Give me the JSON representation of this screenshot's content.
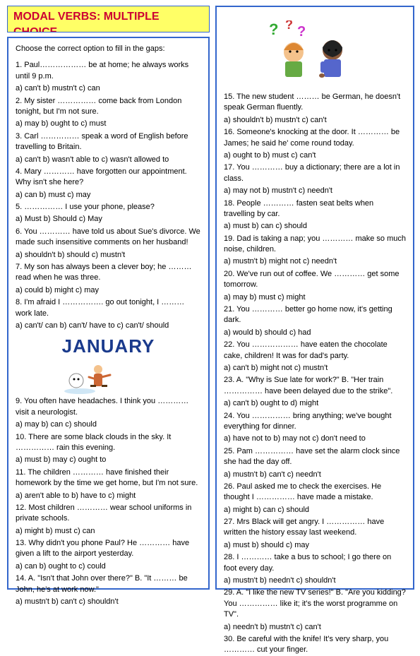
{
  "title": "MODAL VERBS: MULTIPLE CHOICE",
  "intro": "Choose the correct option to fill in the gaps:",
  "january_label": "JANUARY",
  "leftQuestions": [
    {
      "q": "1. Paul……………… be at home; he always works until 9 p.m.",
      "opts": "a) can't        b) mustn't             c) can"
    },
    {
      "q": "2. My sister …………… come back from London tonight, but I'm not sure.",
      "opts": "a) may        b) ought to             c) must"
    },
    {
      "q": "3. Carl …………… speak a word of English before travelling to Britain.",
      "opts": "a) can't   b) wasn't able to   c) wasn't allowed to"
    },
    {
      "q": "4. Mary ………… have forgotten our appointment. Why isn't she here?",
      "opts": "a) can        b) must                c) may"
    },
    {
      "q": "5. …………… I use your phone, please?",
      "opts": "a) Must       b) Should            c) May"
    },
    {
      "q": "6. You ………… have told us about Sue's divorce. We made such insensitive comments on her husband!",
      "opts": "a) shouldn't      b) should          c) mustn't"
    },
    {
      "q": "7. My son has always been a clever boy; he ……… read when he was three.",
      "opts": "a) could         b) might           c) may"
    },
    {
      "q": "8. I'm afraid I ……………. go out tonight, I ……… work late.",
      "opts": "a) can't/ can      b) can't/ have to    c) can't/ should"
    }
  ],
  "leftQuestions2": [
    {
      "q": "9. You often have headaches. I think you ………… visit a neurologist.",
      "opts": "a) may           b) can           c) should"
    },
    {
      "q": "10. There are some black clouds in the sky. It …………… rain this evening.",
      "opts": "a) must         b) may           c) ought to"
    },
    {
      "q": "11. The children ………… have finished their homework by the time we get home, but I'm not sure.",
      "opts": "a) aren't able to      b) have to    c) might"
    },
    {
      "q": "12. Most children ………… wear school uniforms in private schools.",
      "opts": "a) might        b) must           c) can"
    },
    {
      "q": "13. Why didn't you phone Paul? He ………… have given a lift to the airport yesterday.",
      "opts": "a) can           b) ought to       c) could"
    },
    {
      "q": "14. A. \"Isn't that John over there?\" B. \"It ……… be John, he's at work now.\"",
      "opts": "a) mustn't        b) can't         c) shouldn't"
    }
  ],
  "rightQuestions": [
    {
      "q": "15. The new student ……… be German, he doesn't speak German fluently.",
      "opts": "a) shouldn't      b) mustn't           c) can't"
    },
    {
      "q": "16. Someone's knocking at the door. It ………… be James; he said he' come round today.",
      "opts": "a) ought to         b) must                c) can't"
    },
    {
      "q": "17. You ………… buy a dictionary; there are a lot in class.",
      "opts": "a) may not         b) mustn't           c) needn't"
    },
    {
      "q": "18. People ………… fasten seat belts when travelling by car.",
      "opts": "a) must              b) can                c) should"
    },
    {
      "q": "19. Dad is taking a nap; you ………… make so much noise, children.",
      "opts": "a) mustn't          b) might not      c) needn't"
    },
    {
      "q": "20. We've run out of coffee. We ………… get some tomorrow.",
      "opts": "a) may               b) must              c) might"
    },
    {
      "q": "21. You ………… better go home now, it's getting dark.",
      "opts": "a) would            b) should           c) had"
    },
    {
      "q": "22. You ……………… have eaten the chocolate cake, children! It was for dad's party.",
      "opts": "a) can't              b) might not       c) mustn't"
    },
    {
      "q": "23. A. \"Why is Sue late for work?\" B. \"Her train …………… have been delayed due to the strike\".",
      "opts": "a) can't              b) ought to         d) might"
    },
    {
      "q": "24. You …………… bring anything; we've bought everything for dinner.",
      "opts": "a) have not to       b) may not       c) don't need to"
    },
    {
      "q": "25. Pam …………… have set the alarm clock since she had the day off.",
      "opts": "a) mustn't           b) can't              c) needn't"
    },
    {
      "q": "26. Paul asked me to check the exercises. He thought I …………… have made a mistake.",
      "opts": "a) might             b) can                c) should"
    },
    {
      "q": "27. Mrs Black will get angry. I …………… have written the history essay last weekend.",
      "opts": "a) must              b) should            c) may"
    },
    {
      "q": "28. I ………… take a bus to school; I go there on foot every day.",
      "opts": "a) mustn't           b) needn't           c) shouldn't"
    },
    {
      "q": "29. A. \"I like the new TV series!\" B. \"Are you kidding? You …………… like it; it's the worst programme on TV\".",
      "opts": "a) needn't           b) mustn't           c) can't"
    },
    {
      "q": "30. Be careful with the knife! It's very sharp, you ………… cut your finger.",
      "opts": ""
    }
  ]
}
